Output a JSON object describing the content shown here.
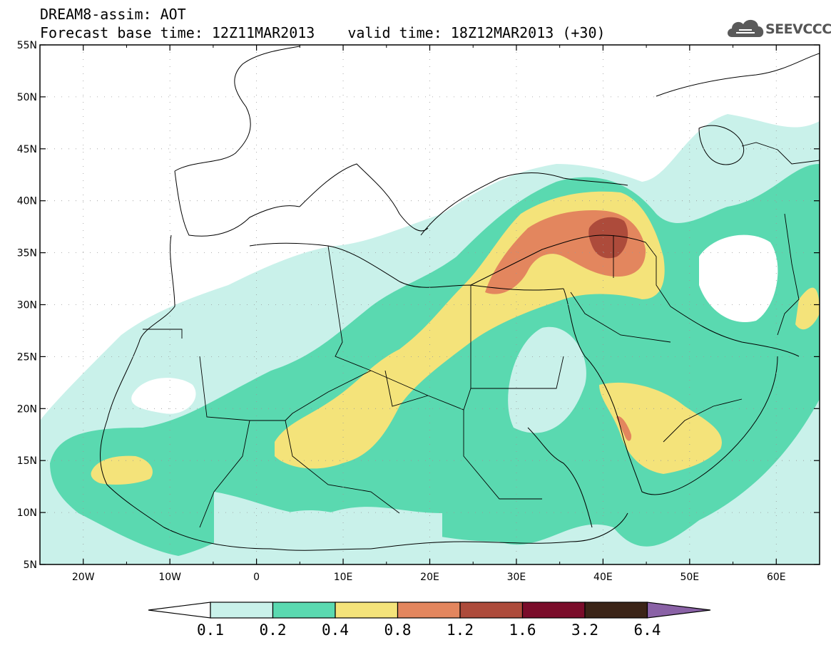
{
  "header": {
    "title": "DREAM8-assim: AOT",
    "base_time": "Forecast base time: 12Z11MAR2013",
    "valid_time": "valid time: 18Z12MAR2013 (+30)"
  },
  "logo": {
    "text": "SEEVCCC",
    "icon": "cloud-icon"
  },
  "map": {
    "lat_labels": [
      "55N",
      "50N",
      "45N",
      "40N",
      "35N",
      "30N",
      "25N",
      "20N",
      "15N",
      "10N",
      "5N"
    ],
    "lon_labels": [
      "20W",
      "10W",
      "0",
      "10E",
      "20E",
      "30E",
      "40E",
      "50E",
      "60E"
    ],
    "lat_range": [
      5,
      55
    ],
    "lon_range": [
      -25,
      65
    ]
  },
  "colorbar": {
    "labels": [
      "0.1",
      "0.2",
      "0.4",
      "0.8",
      "1.2",
      "1.6",
      "3.2",
      "6.4"
    ],
    "colors": [
      "#ffffff",
      "#c9f1ea",
      "#5ad9b0",
      "#f4e37a",
      "#e3865e",
      "#ad4b3b",
      "#7a0c2a",
      "#3b2417",
      "#8a62a6"
    ]
  }
}
